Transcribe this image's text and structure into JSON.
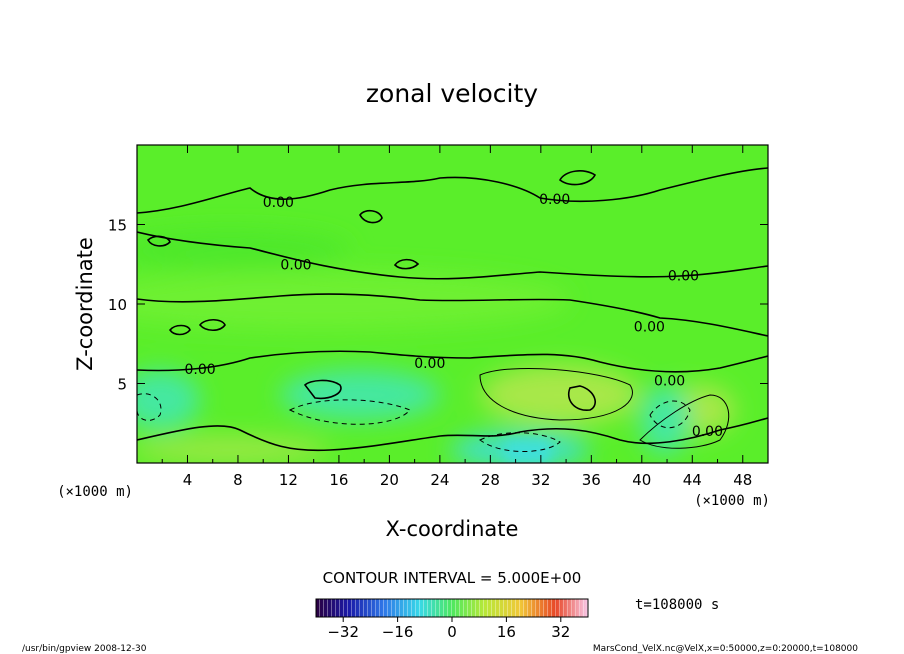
{
  "chart_data": {
    "type": "heatmap",
    "title": "zonal velocity",
    "xlabel": "X-coordinate",
    "ylabel": "Z-coordinate",
    "x_unit": "(×1000 m)",
    "y_unit": "(×1000 m)",
    "xlim": [
      0,
      50
    ],
    "ylim": [
      0,
      20
    ],
    "x_ticks": [
      "4",
      "8",
      "12",
      "16",
      "20",
      "24",
      "28",
      "32",
      "36",
      "40",
      "44",
      "48"
    ],
    "y_ticks": [
      "5",
      "10",
      "15"
    ],
    "contour_label": "0.00",
    "contour_interval_text": "CONTOUR INTERVAL = 5.000E+00",
    "time_text": "t=108000 s",
    "colorbar": {
      "range": [
        -40,
        40
      ],
      "ticks": [
        "−32",
        "−16",
        "0",
        "16",
        "32"
      ],
      "tick_values": [
        -32,
        -16,
        0,
        16,
        32
      ]
    },
    "footer_left": "/usr/bin/gpview   2008-12-30",
    "footer_right": "MarsCond_VelX.nc@VelX,x=0:50000,z=0:20000,t=108000",
    "colors": {
      "background": "#5aee2a",
      "positive_patch": "#a8e84a",
      "negative_patch": "#40e6a0",
      "line": "#000000"
    },
    "contour_label_positions": [
      [
        11.2,
        16.4
      ],
      [
        12.6,
        12.5
      ],
      [
        33.1,
        16.6
      ],
      [
        43.3,
        11.8
      ],
      [
        40.6,
        8.6
      ],
      [
        5.0,
        5.9
      ],
      [
        23.2,
        6.3
      ],
      [
        42.2,
        5.2
      ],
      [
        45.2,
        2.0
      ]
    ]
  }
}
